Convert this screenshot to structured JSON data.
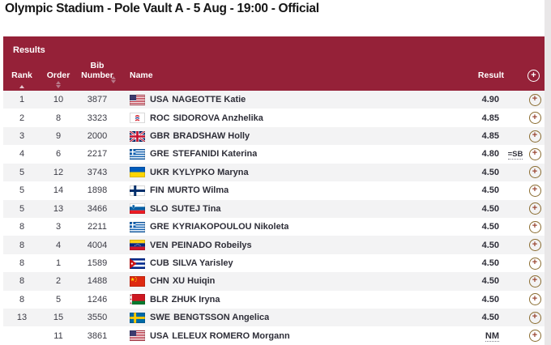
{
  "page_title": "Olympic Stadium - Pole Vault A - 5 Aug - 19:00 - Official",
  "panel": {
    "title": "Results",
    "columns": {
      "rank": "Rank",
      "order": "Order",
      "bib": "Bib Number",
      "name": "Name",
      "result": "Result"
    },
    "sort": {
      "rank": "ascending",
      "order": "none",
      "bib": "none"
    }
  },
  "icons": {
    "header_plus": "plus-circle-icon",
    "row_plus": "plus-circle-icon",
    "sort": "sort-arrows-icon"
  },
  "colors": {
    "header_bg": "#952138",
    "gold_ring": "#8a6c30",
    "plus_glyph": "#9a4733",
    "sort_arrow": "#b8798a",
    "sort_arrow_active": "#e4c6cd",
    "row_alt_bg": "#f3f3f4"
  },
  "table": {
    "rows": [
      {
        "rank": "1",
        "order": "10",
        "bib": "3877",
        "noc": "USA",
        "name": "NAGEOTTE Katie",
        "result": "4.90",
        "note": ""
      },
      {
        "rank": "2",
        "order": "8",
        "bib": "3323",
        "noc": "ROC",
        "name": "SIDOROVA Anzhelika",
        "result": "4.85",
        "note": ""
      },
      {
        "rank": "3",
        "order": "9",
        "bib": "2000",
        "noc": "GBR",
        "name": "BRADSHAW Holly",
        "result": "4.85",
        "note": ""
      },
      {
        "rank": "4",
        "order": "6",
        "bib": "2217",
        "noc": "GRE",
        "name": "STEFANIDI Katerina",
        "result": "4.80",
        "note": "=SB"
      },
      {
        "rank": "5",
        "order": "12",
        "bib": "3743",
        "noc": "UKR",
        "name": "KYLYPKO Maryna",
        "result": "4.50",
        "note": ""
      },
      {
        "rank": "5",
        "order": "14",
        "bib": "1898",
        "noc": "FIN",
        "name": "MURTO Wilma",
        "result": "4.50",
        "note": ""
      },
      {
        "rank": "5",
        "order": "13",
        "bib": "3466",
        "noc": "SLO",
        "name": "SUTEJ Tina",
        "result": "4.50",
        "note": ""
      },
      {
        "rank": "8",
        "order": "3",
        "bib": "2211",
        "noc": "GRE",
        "name": "KYRIAKOPOULOU Nikoleta",
        "result": "4.50",
        "note": ""
      },
      {
        "rank": "8",
        "order": "4",
        "bib": "4004",
        "noc": "VEN",
        "name": "PEINADO Robeilys",
        "result": "4.50",
        "note": ""
      },
      {
        "rank": "8",
        "order": "1",
        "bib": "1589",
        "noc": "CUB",
        "name": "SILVA Yarisley",
        "result": "4.50",
        "note": ""
      },
      {
        "rank": "8",
        "order": "2",
        "bib": "1488",
        "noc": "CHN",
        "name": "XU Huiqin",
        "result": "4.50",
        "note": ""
      },
      {
        "rank": "8",
        "order": "5",
        "bib": "1246",
        "noc": "BLR",
        "name": "ZHUK Iryna",
        "result": "4.50",
        "note": ""
      },
      {
        "rank": "13",
        "order": "15",
        "bib": "3550",
        "noc": "SWE",
        "name": "BENGTSSON Angelica",
        "result": "4.50",
        "note": ""
      },
      {
        "rank": "",
        "order": "11",
        "bib": "3861",
        "noc": "USA",
        "name": "LELEUX ROMERO Morgann",
        "result": "NM",
        "note": ""
      }
    ]
  }
}
